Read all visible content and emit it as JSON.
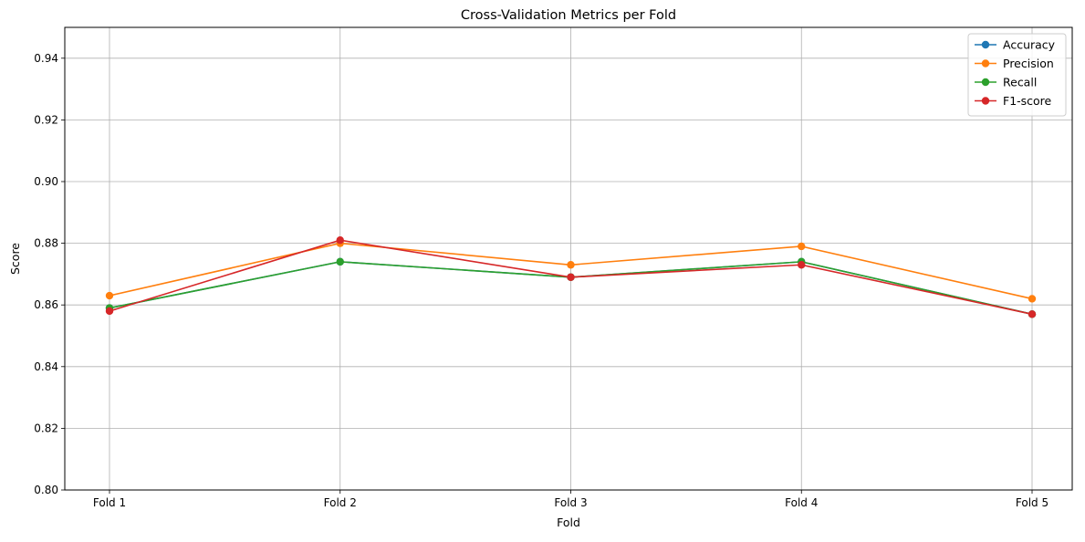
{
  "chart_data": {
    "type": "line",
    "title": "Cross-Validation Metrics per Fold",
    "xlabel": "Fold",
    "ylabel": "Score",
    "categories": [
      "Fold 1",
      "Fold 2",
      "Fold 3",
      "Fold 4",
      "Fold 5"
    ],
    "ylim": [
      0.8,
      0.95
    ],
    "yticks": [
      "0.80",
      "0.82",
      "0.84",
      "0.86",
      "0.88",
      "0.90",
      "0.92",
      "0.94"
    ],
    "grid": true,
    "legend_position": "top-right",
    "series": [
      {
        "name": "Accuracy",
        "color": "#1f77b4",
        "values": [
          0.859,
          0.874,
          0.869,
          0.874,
          0.857
        ]
      },
      {
        "name": "Precision",
        "color": "#ff7f0e",
        "values": [
          0.863,
          0.88,
          0.873,
          0.879,
          0.862
        ]
      },
      {
        "name": "Recall",
        "color": "#2ca02c",
        "values": [
          0.859,
          0.874,
          0.869,
          0.874,
          0.857
        ]
      },
      {
        "name": "F1-score",
        "color": "#d62728",
        "values": [
          0.858,
          0.881,
          0.869,
          0.873,
          0.857
        ]
      }
    ]
  }
}
